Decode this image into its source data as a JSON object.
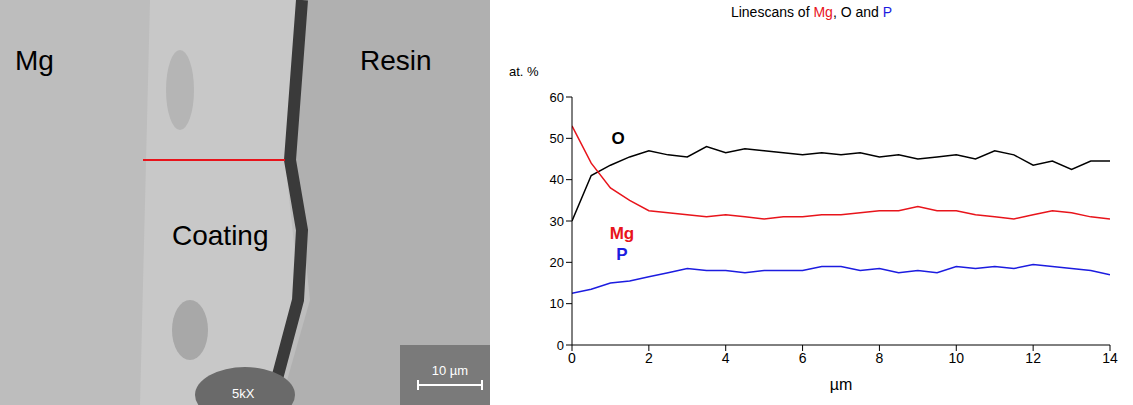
{
  "image": {
    "labels": [
      "Mg",
      "Resin",
      "Coating"
    ],
    "magnification": "5kX",
    "scale_bar": "10 µm"
  },
  "chart_data": {
    "type": "line",
    "title": "Linescans of Mg, O and P",
    "x_label": "µm",
    "y_label": "at. %",
    "x": [
      0,
      0.5,
      1,
      1.5,
      2,
      2.5,
      3,
      3.5,
      4,
      4.5,
      5,
      5.5,
      6,
      6.5,
      7,
      7.5,
      8,
      8.5,
      9,
      9.5,
      10,
      10.5,
      11,
      11.5,
      12,
      12.5,
      13,
      13.5,
      14
    ],
    "series": [
      {
        "name": "O",
        "color": "#000000",
        "values": [
          30,
          41,
          43.5,
          45.5,
          47,
          46,
          45.5,
          48,
          46.5,
          47.5,
          47,
          46.5,
          46,
          46.5,
          46,
          46.5,
          45.5,
          46,
          45,
          45.5,
          46,
          45,
          47,
          46,
          43.5,
          44.5,
          42.5,
          44.5,
          44.5
        ]
      },
      {
        "name": "Mg",
        "color": "#e8141b",
        "values": [
          53,
          44,
          38,
          35,
          32.5,
          32,
          31.5,
          31,
          31.5,
          31,
          30.5,
          31,
          31,
          31.5,
          31.5,
          32,
          32.5,
          32.5,
          33.5,
          32.5,
          32.5,
          31.5,
          31,
          30.5,
          31.5,
          32.5,
          32,
          31,
          30.5
        ]
      },
      {
        "name": "P",
        "color": "#1c1ce0",
        "values": [
          12.5,
          13.5,
          15,
          15.5,
          16.5,
          17.5,
          18.5,
          18,
          18,
          17.5,
          18,
          18,
          18,
          19,
          19,
          18,
          18.5,
          17.5,
          18,
          17.5,
          19,
          18.5,
          19,
          18.5,
          19.5,
          19,
          18.5,
          18,
          17
        ]
      }
    ],
    "annotations": [
      {
        "text": "O",
        "x": 1.2,
        "y": 50,
        "color": "#000000"
      },
      {
        "text": "Mg",
        "x": 1.3,
        "y": 27,
        "color": "#e8141b"
      },
      {
        "text": "P",
        "x": 1.3,
        "y": 22,
        "color": "#1c1ce0"
      }
    ],
    "xlim": [
      0,
      14
    ],
    "ylim": [
      0,
      60
    ],
    "xticks": [
      0,
      2,
      4,
      6,
      8,
      10,
      12,
      14
    ],
    "yticks": [
      0,
      10,
      20,
      30,
      40,
      50,
      60
    ],
    "grid": false
  }
}
